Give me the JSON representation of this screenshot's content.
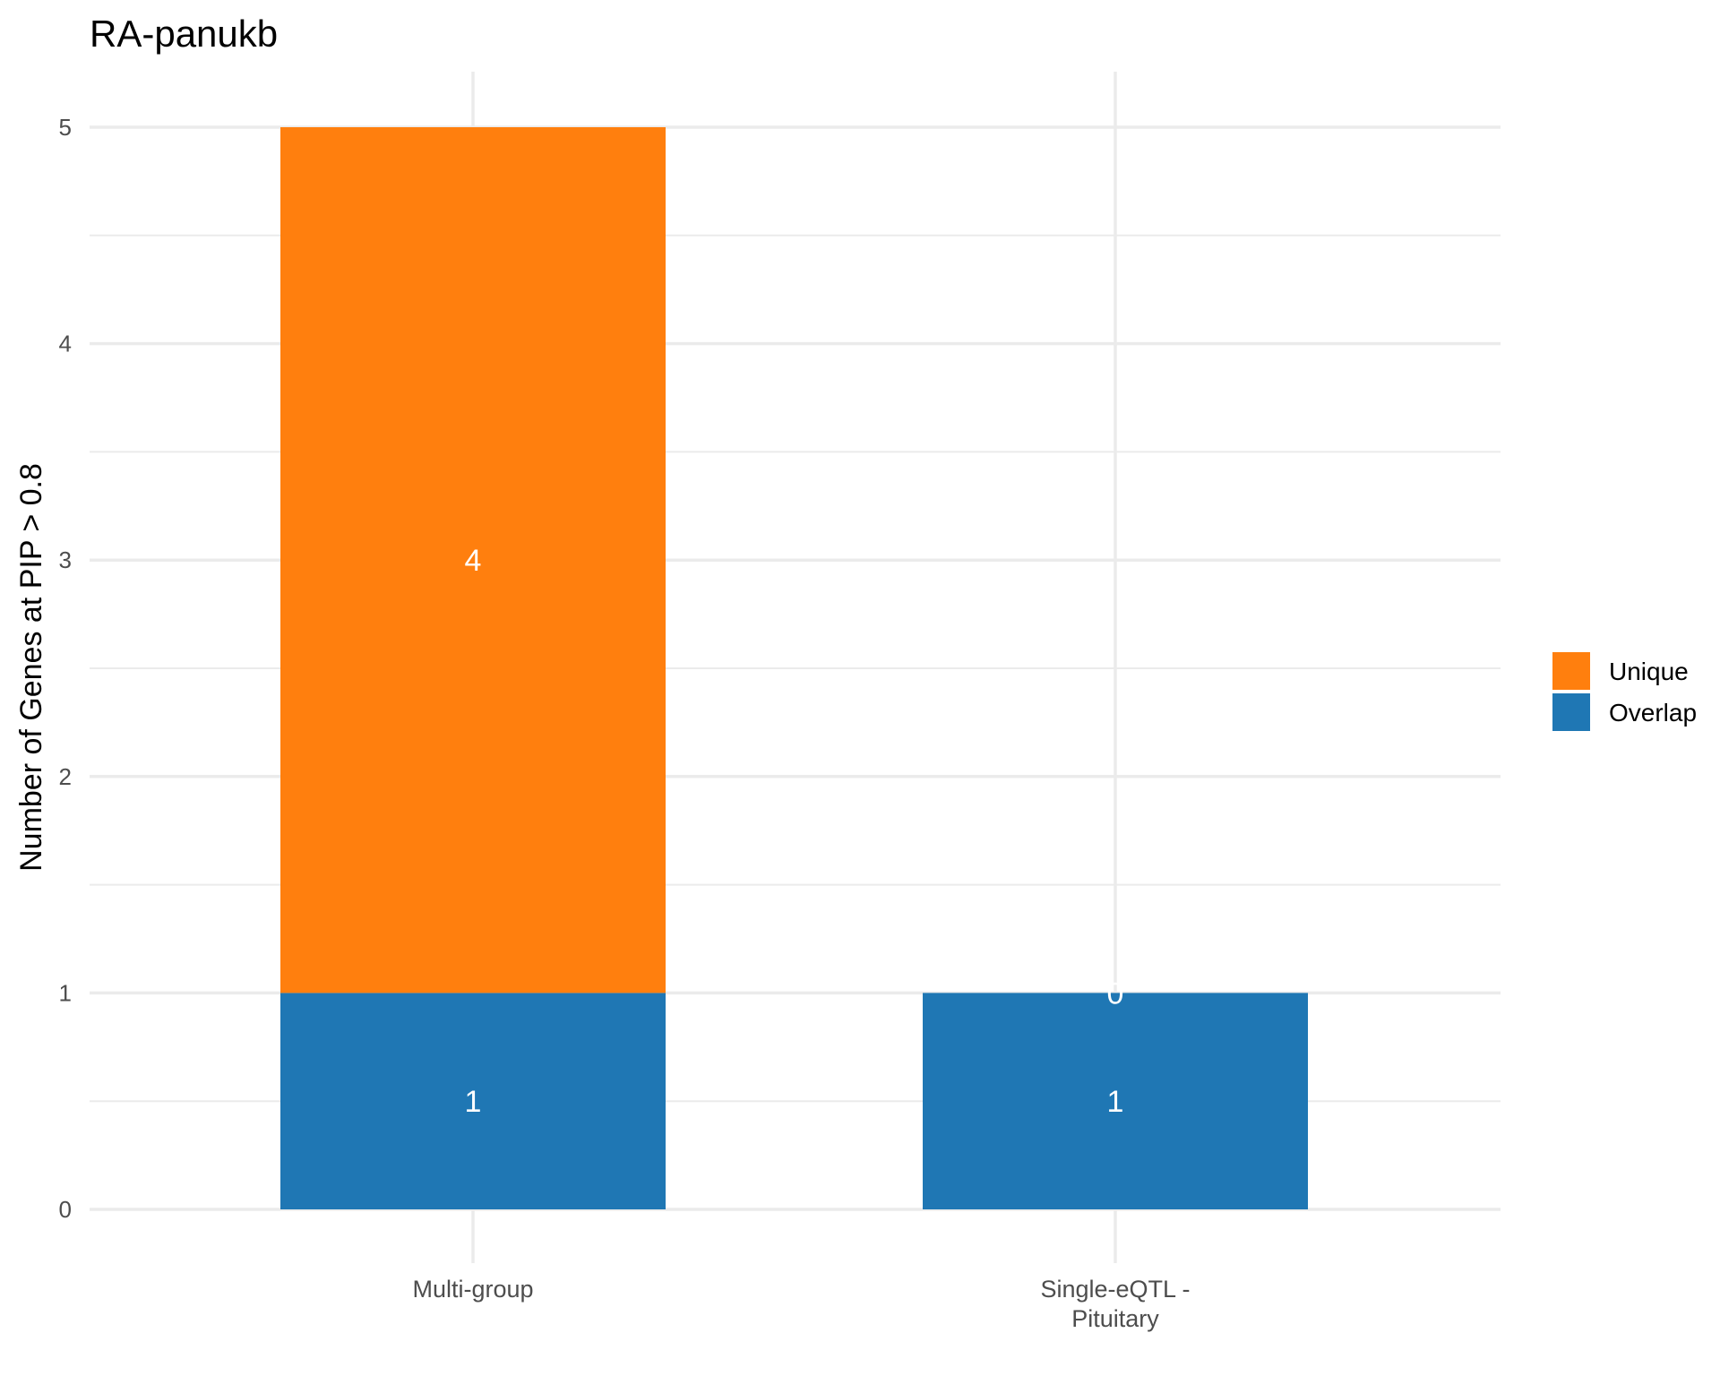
{
  "chart_data": {
    "type": "bar",
    "stacked": true,
    "title": "RA-panukb",
    "xlabel": "",
    "ylabel": "Number of Genes at PIP > 0.8",
    "ylim": [
      0,
      5.25
    ],
    "yticks": [
      0,
      1,
      2,
      3,
      4,
      5
    ],
    "grid": true,
    "legend_position": "right",
    "categories": [
      {
        "lines": [
          "Multi-group"
        ]
      },
      {
        "lines": [
          "Single-eQTL -",
          "Pituitary"
        ]
      }
    ],
    "series": [
      {
        "name": "Overlap",
        "color": "#1f77b4",
        "values": [
          1,
          1
        ]
      },
      {
        "name": "Unique",
        "color": "#ff7f0e",
        "values": [
          4,
          0
        ]
      }
    ],
    "legend_order": [
      "Unique",
      "Overlap"
    ]
  }
}
